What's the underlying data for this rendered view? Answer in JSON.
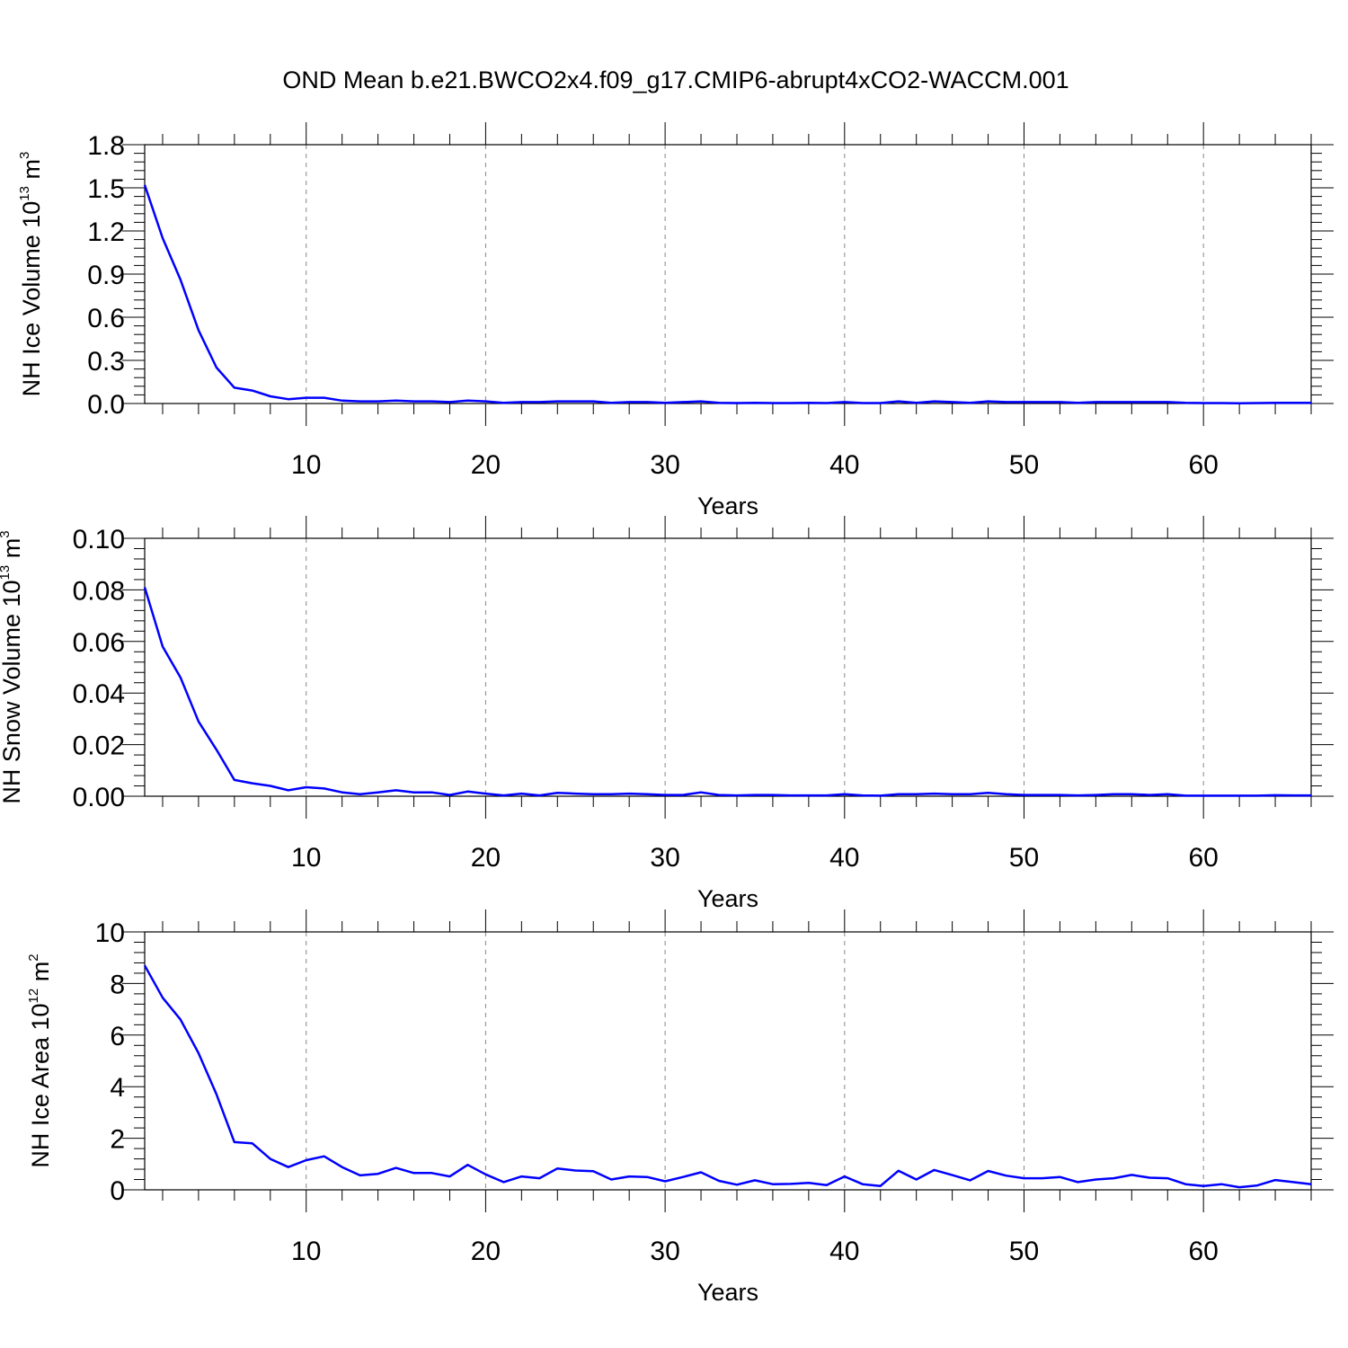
{
  "title": "OND Mean b.e21.BWCO2x4.f09_g17.CMIP6-abrupt4xCO2-WACCM.001",
  "colors": {
    "line": "#0000ff",
    "grid": "#888888",
    "axis": "#000000"
  },
  "chart_data": [
    {
      "type": "line",
      "ylabel_main": "NH Ice Volume 10",
      "ylabel_sup": "13",
      "ylabel_unit": " m",
      "ylabel_unit_sup": "3",
      "xlabel": "Years",
      "xlim": [
        1,
        66
      ],
      "ylim": [
        0,
        1.8
      ],
      "yticks": [
        0,
        0.3,
        0.6,
        0.9,
        1.2,
        1.5,
        1.8
      ],
      "ytick_labels": [
        "0.0",
        "0.3",
        "0.6",
        "0.9",
        "1.2",
        "1.5",
        "1.8"
      ],
      "xticks": [
        10,
        20,
        30,
        40,
        50,
        60
      ],
      "xtick_labels": [
        "10",
        "20",
        "30",
        "40",
        "50",
        "60"
      ],
      "grid_x": true,
      "series": [
        {
          "name": "NH Ice Volume",
          "x": [
            1,
            2,
            3,
            4,
            5,
            6,
            7,
            8,
            9,
            10,
            11,
            12,
            13,
            14,
            15,
            16,
            17,
            18,
            19,
            20,
            21,
            22,
            23,
            24,
            25,
            26,
            27,
            28,
            29,
            30,
            31,
            32,
            33,
            34,
            35,
            36,
            37,
            38,
            39,
            40,
            41,
            42,
            43,
            44,
            45,
            46,
            47,
            48,
            49,
            50,
            51,
            52,
            53,
            54,
            55,
            56,
            57,
            58,
            59,
            60,
            61,
            62,
            63,
            64,
            65,
            66
          ],
          "values": [
            1.52,
            1.15,
            0.86,
            0.51,
            0.25,
            0.11,
            0.09,
            0.05,
            0.03,
            0.04,
            0.04,
            0.02,
            0.015,
            0.015,
            0.02,
            0.015,
            0.015,
            0.01,
            0.02,
            0.015,
            0.005,
            0.01,
            0.01,
            0.015,
            0.015,
            0.015,
            0.005,
            0.01,
            0.01,
            0.005,
            0.01,
            0.015,
            0.005,
            0.003,
            0.005,
            0.003,
            0.003,
            0.005,
            0.003,
            0.01,
            0.003,
            0.003,
            0.015,
            0.005,
            0.015,
            0.01,
            0.005,
            0.015,
            0.01,
            0.01,
            0.01,
            0.01,
            0.005,
            0.01,
            0.01,
            0.01,
            0.01,
            0.01,
            0.005,
            0.003,
            0.003,
            0.002,
            0.003,
            0.005,
            0.005,
            0.005
          ]
        }
      ]
    },
    {
      "type": "line",
      "ylabel_main": "NH Snow Volume 10",
      "ylabel_sup": "13",
      "ylabel_unit": " m",
      "ylabel_unit_sup": "3",
      "xlabel": "Years",
      "xlim": [
        1,
        66
      ],
      "ylim": [
        0,
        0.1
      ],
      "yticks": [
        0,
        0.02,
        0.04,
        0.06,
        0.08,
        0.1
      ],
      "ytick_labels": [
        "0.00",
        "0.02",
        "0.04",
        "0.06",
        "0.08",
        "0.10"
      ],
      "xticks": [
        10,
        20,
        30,
        40,
        50,
        60
      ],
      "xtick_labels": [
        "10",
        "20",
        "30",
        "40",
        "50",
        "60"
      ],
      "grid_x": true,
      "series": [
        {
          "name": "NH Snow Volume",
          "x": [
            1,
            2,
            3,
            4,
            5,
            6,
            7,
            8,
            9,
            10,
            11,
            12,
            13,
            14,
            15,
            16,
            17,
            18,
            19,
            20,
            21,
            22,
            23,
            24,
            25,
            26,
            27,
            28,
            29,
            30,
            31,
            32,
            33,
            34,
            35,
            36,
            37,
            38,
            39,
            40,
            41,
            42,
            43,
            44,
            45,
            46,
            47,
            48,
            49,
            50,
            51,
            52,
            53,
            54,
            55,
            56,
            57,
            58,
            59,
            60,
            61,
            62,
            63,
            64,
            65,
            66
          ],
          "values": [
            0.081,
            0.058,
            0.046,
            0.029,
            0.018,
            0.0063,
            0.005,
            0.004,
            0.0023,
            0.0035,
            0.003,
            0.0015,
            0.0008,
            0.0015,
            0.0023,
            0.0015,
            0.0015,
            0.0005,
            0.0018,
            0.001,
            0.0003,
            0.001,
            0.0003,
            0.0013,
            0.001,
            0.0008,
            0.0008,
            0.001,
            0.0008,
            0.0005,
            0.0005,
            0.0015,
            0.0005,
            0.0003,
            0.0005,
            0.0005,
            0.0003,
            0.0003,
            0.0003,
            0.0008,
            0.0003,
            0.0002,
            0.0008,
            0.0008,
            0.001,
            0.0008,
            0.0008,
            0.0013,
            0.0008,
            0.0005,
            0.0005,
            0.0005,
            0.0003,
            0.0005,
            0.0008,
            0.0008,
            0.0005,
            0.0008,
            0.0002,
            0.0002,
            0.0002,
            0.0002,
            0.0002,
            0.0004,
            0.0003,
            0.0003
          ]
        }
      ]
    },
    {
      "type": "line",
      "ylabel_main": "NH Ice Area 10",
      "ylabel_sup": "12",
      "ylabel_unit": " m",
      "ylabel_unit_sup": "2",
      "xlabel": "Years",
      "xlim": [
        1,
        66
      ],
      "ylim": [
        0,
        10
      ],
      "yticks": [
        0,
        2,
        4,
        6,
        8,
        10
      ],
      "ytick_labels": [
        "0",
        "2",
        "4",
        "6",
        "8",
        "10"
      ],
      "xticks": [
        10,
        20,
        30,
        40,
        50,
        60
      ],
      "xtick_labels": [
        "10",
        "20",
        "30",
        "40",
        "50",
        "60"
      ],
      "grid_x": true,
      "series": [
        {
          "name": "NH Ice Area",
          "x": [
            1,
            2,
            3,
            4,
            5,
            6,
            7,
            8,
            9,
            10,
            11,
            12,
            13,
            14,
            15,
            16,
            17,
            18,
            19,
            20,
            21,
            22,
            23,
            24,
            25,
            26,
            27,
            28,
            29,
            30,
            31,
            32,
            33,
            34,
            35,
            36,
            37,
            38,
            39,
            40,
            41,
            42,
            43,
            44,
            45,
            46,
            47,
            48,
            49,
            50,
            51,
            52,
            53,
            54,
            55,
            56,
            57,
            58,
            59,
            60,
            61,
            62,
            63,
            64,
            65,
            66
          ],
          "values": [
            8.7,
            7.45,
            6.6,
            5.3,
            3.7,
            1.85,
            1.8,
            1.2,
            0.88,
            1.15,
            1.3,
            0.88,
            0.56,
            0.62,
            0.85,
            0.65,
            0.65,
            0.52,
            0.97,
            0.6,
            0.3,
            0.52,
            0.45,
            0.83,
            0.75,
            0.72,
            0.4,
            0.52,
            0.5,
            0.33,
            0.5,
            0.68,
            0.35,
            0.2,
            0.37,
            0.22,
            0.23,
            0.27,
            0.18,
            0.52,
            0.22,
            0.15,
            0.74,
            0.4,
            0.77,
            0.57,
            0.37,
            0.73,
            0.55,
            0.45,
            0.45,
            0.5,
            0.3,
            0.4,
            0.45,
            0.58,
            0.47,
            0.45,
            0.22,
            0.15,
            0.22,
            0.1,
            0.17,
            0.38,
            0.3,
            0.22
          ]
        }
      ]
    }
  ]
}
